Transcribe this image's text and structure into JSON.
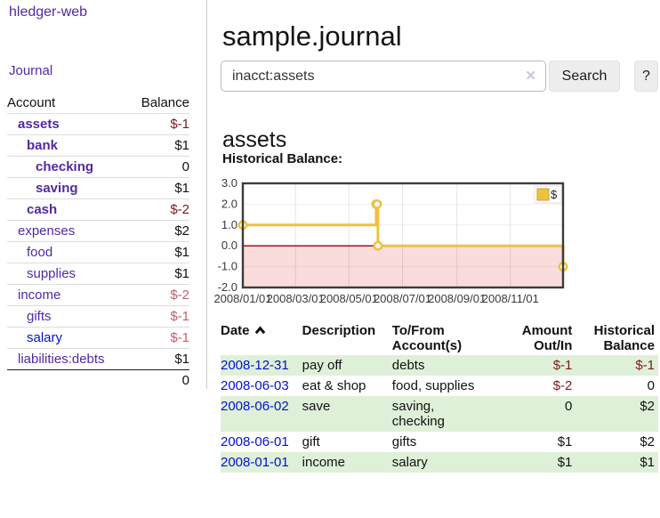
{
  "sidebar": {
    "brand": "hledger-web",
    "nav": {
      "journal": "Journal"
    },
    "table": {
      "headers": {
        "account": "Account",
        "balance": "Balance"
      },
      "accounts": [
        {
          "name": "assets",
          "balance": "$-1"
        },
        {
          "name": "bank",
          "balance": "$1"
        },
        {
          "name": "checking",
          "balance": "0"
        },
        {
          "name": "saving",
          "balance": "$1"
        },
        {
          "name": "cash",
          "balance": "$-2"
        },
        {
          "name": "expenses",
          "balance": "$2"
        },
        {
          "name": "food",
          "balance": "$1"
        },
        {
          "name": "supplies",
          "balance": "$1"
        },
        {
          "name": "income",
          "balance": "$-2"
        },
        {
          "name": "gifts",
          "balance": "$-1"
        },
        {
          "name": "salary",
          "balance": "$-1"
        },
        {
          "name": "liabilities:debts",
          "balance": "$1"
        }
      ],
      "total": "0"
    }
  },
  "header": {
    "title": "sample.journal"
  },
  "search": {
    "query": "inacct:assets",
    "clear_icon": "✕",
    "button": "Search",
    "help": "?"
  },
  "register": {
    "heading": "assets",
    "chart_label": "Historical Balance:",
    "table": {
      "headers": {
        "date": "Date",
        "description": "Description",
        "accounts_line1": "To/From",
        "accounts_line2": "Account(s)",
        "amount_line1": "Amount",
        "amount_line2": "Out/In",
        "balance_line1": "Historical",
        "balance_line2": "Balance"
      },
      "rows": [
        {
          "date": "2008-12-31",
          "description": "pay off",
          "accounts": "debts",
          "amount": "$-1",
          "balance": "$-1"
        },
        {
          "date": "2008-06-03",
          "description": "eat & shop",
          "accounts": "food, supplies",
          "amount": "$-2",
          "balance": "0"
        },
        {
          "date": "2008-06-02",
          "description": "save",
          "accounts": "saving, checking",
          "amount": "0",
          "balance": "$2"
        },
        {
          "date": "2008-06-01",
          "description": "gift",
          "accounts": "gifts",
          "amount": "$1",
          "balance": "$2"
        },
        {
          "date": "2008-01-01",
          "description": "income",
          "accounts": "salary",
          "amount": "$1",
          "balance": "$1"
        }
      ]
    }
  },
  "chart_data": {
    "type": "line",
    "step": true,
    "title": "Historical Balance:",
    "series": [
      {
        "name": "$",
        "color": "#edc240",
        "points": [
          [
            "2008-01-01",
            1
          ],
          [
            "2008-06-01",
            2
          ],
          [
            "2008-06-02",
            2
          ],
          [
            "2008-06-03",
            0
          ],
          [
            "2008-12-31",
            -1
          ]
        ]
      }
    ],
    "xlim": [
      "2008-01-01",
      "2008-12-31"
    ],
    "ylim": [
      -2,
      3
    ],
    "x_ticks": [
      "2008/01/01",
      "2008/03/01",
      "2008/05/01",
      "2008/07/01",
      "2008/09/01",
      "2008/11/01"
    ],
    "y_ticks": [
      3.0,
      2.0,
      1.0,
      0.0,
      -1.0,
      -2.0
    ],
    "grid": true,
    "legend_position": "top-right",
    "negative_region_color": "#fadcdc",
    "zero_line_color": "#9c0000"
  }
}
